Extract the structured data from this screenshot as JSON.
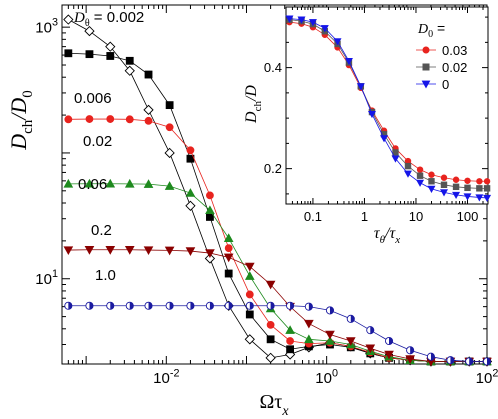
{
  "chart_data": [
    {
      "id": "main",
      "type": "line",
      "x_scale": "log",
      "y_scale": "log",
      "xlim": [
        0.0005,
        100
      ],
      "ylim": [
        2.1,
        1500
      ],
      "x_ticks": [
        {
          "value": 0.01,
          "label": "10",
          "exp": "-2"
        },
        {
          "value": 1,
          "label": "10",
          "exp": "0"
        },
        {
          "value": 100,
          "label": "10",
          "exp": "2"
        }
      ],
      "y_ticks": [
        {
          "value": 10,
          "label": "10",
          "exp": "1"
        },
        {
          "value": 1000,
          "label": "10",
          "exp": "3"
        }
      ],
      "xlabel": {
        "main": "Ωτ",
        "sub": "x"
      },
      "ylabel": {
        "main": "D",
        "sub": "ch",
        "tail": "/D",
        "tail_sub": "0"
      },
      "series": [
        {
          "label": "D",
          "label_sub": "θ",
          "label_tail": " = 0.002",
          "color": "#000000",
          "marker": "diamond-open",
          "x": [
            0.0006,
            0.0011,
            0.002,
            0.0035,
            0.006,
            0.011,
            0.02,
            0.035,
            0.06,
            0.11,
            0.2,
            0.35,
            0.6,
            1.1,
            2,
            3.5,
            6,
            11,
            20,
            35,
            60,
            100
          ],
          "y": [
            1150,
            930,
            700,
            450,
            220,
            100,
            38,
            14.5,
            6.1,
            3.3,
            2.35,
            2.5,
            2.85,
            3.1,
            2.9,
            2.55,
            2.35,
            2.25,
            2.2,
            2.2,
            2.2,
            2.2
          ]
        },
        {
          "label": "0.006",
          "color": "#000000",
          "marker": "square",
          "x": [
            0.0006,
            0.0011,
            0.002,
            0.0035,
            0.006,
            0.011,
            0.02,
            0.035,
            0.06,
            0.11,
            0.2,
            0.35,
            0.6,
            1.1,
            2,
            3.5,
            6,
            11,
            20,
            35,
            60,
            100
          ],
          "y": [
            620,
            610,
            590,
            540,
            420,
            240,
            90,
            31,
            11,
            5.2,
            3.3,
            2.75,
            2.9,
            3.0,
            2.85,
            2.55,
            2.35,
            2.25,
            2.2,
            2.2,
            2.2,
            2.2
          ]
        },
        {
          "label": "0.02",
          "color": "#e8231e",
          "marker": "circle",
          "x": [
            0.0006,
            0.0011,
            0.002,
            0.0035,
            0.006,
            0.011,
            0.02,
            0.035,
            0.06,
            0.11,
            0.2,
            0.35,
            0.6,
            1.1,
            2,
            3.5,
            6,
            11,
            20,
            35,
            60,
            100
          ],
          "y": [
            185,
            186,
            186,
            185,
            180,
            160,
            105,
            46,
            17.5,
            7.5,
            4.3,
            3.2,
            3.05,
            3.1,
            2.9,
            2.6,
            2.35,
            2.25,
            2.2,
            2.2,
            2.2,
            2.2
          ]
        },
        {
          "label": "0.06",
          "color": "#1e8a1e",
          "marker": "triangle-up",
          "x": [
            0.0006,
            0.0011,
            0.002,
            0.0035,
            0.006,
            0.011,
            0.02,
            0.035,
            0.06,
            0.11,
            0.2,
            0.35,
            0.6,
            1.1,
            2,
            3.5,
            6,
            11,
            20,
            35,
            60,
            100
          ],
          "y": [
            56.8,
            56.9,
            56.9,
            56.8,
            56.5,
            54.5,
            48,
            35,
            21,
            10.5,
            5.8,
            3.9,
            3.3,
            3.2,
            3.0,
            2.65,
            2.4,
            2.25,
            2.2,
            2.2,
            2.2,
            2.2
          ]
        },
        {
          "label": "0.2",
          "color": "#8b0000",
          "marker": "triangle-down",
          "x": [
            0.0006,
            0.0011,
            0.002,
            0.0035,
            0.006,
            0.011,
            0.02,
            0.035,
            0.06,
            0.11,
            0.2,
            0.35,
            0.6,
            1.1,
            2,
            3.5,
            6,
            11,
            20,
            35,
            60,
            100
          ],
          "y": [
            16.9,
            17,
            17,
            17,
            16.9,
            16.8,
            16.6,
            16,
            14.8,
            12.5,
            9,
            6,
            4.4,
            3.6,
            3.2,
            2.8,
            2.5,
            2.3,
            2.2,
            2.2,
            2.2,
            2.2
          ]
        },
        {
          "label": "1.0",
          "color": "#1a1aa0",
          "marker": "circle-half",
          "x": [
            0.0006,
            0.0011,
            0.002,
            0.0035,
            0.006,
            0.011,
            0.02,
            0.035,
            0.06,
            0.11,
            0.2,
            0.35,
            0.6,
            1.1,
            2,
            3.5,
            6,
            11,
            20,
            35,
            60,
            100
          ],
          "y": [
            6.1,
            6.1,
            6.1,
            6.1,
            6.1,
            6.1,
            6.1,
            6.1,
            6.1,
            6.1,
            6.1,
            6.1,
            6.0,
            5.6,
            4.8,
            3.9,
            3.2,
            2.7,
            2.4,
            2.25,
            2.2,
            2.2
          ]
        }
      ]
    },
    {
      "id": "inset",
      "type": "line",
      "x_scale": "log",
      "y_scale": "linear",
      "xlim": [
        0.03,
        250
      ],
      "ylim": [
        0.13,
        0.52
      ],
      "x_ticks": [
        {
          "value": 0.1,
          "label": "0.1"
        },
        {
          "value": 1,
          "label": "1"
        },
        {
          "value": 10,
          "label": "10"
        },
        {
          "value": 100,
          "label": "100"
        }
      ],
      "y_ticks": [
        {
          "value": 0.2,
          "label": "0.2"
        },
        {
          "value": 0.4,
          "label": "0.4"
        }
      ],
      "xlabel": {
        "main": "τ",
        "sub": "θ",
        "tail": "/τ",
        "tail_sub": "x"
      },
      "ylabel": {
        "main": "D",
        "sub": "ch",
        "tail": "/D"
      },
      "legend": {
        "title": "D",
        "title_sub": "0",
        "title_tail": " =",
        "position": "right"
      },
      "series": [
        {
          "name": "0.03",
          "color": "#e8231e",
          "marker": "circle",
          "x": [
            0.035,
            0.06,
            0.1,
            0.17,
            0.3,
            0.5,
            0.85,
            1.4,
            2.4,
            4,
            7,
            12,
            20,
            35,
            60,
            100,
            170,
            240
          ],
          "y": [
            0.49,
            0.487,
            0.48,
            0.465,
            0.44,
            0.405,
            0.36,
            0.315,
            0.275,
            0.24,
            0.215,
            0.198,
            0.188,
            0.182,
            0.178,
            0.176,
            0.175,
            0.175
          ]
        },
        {
          "name": "0.02",
          "color": "#555555",
          "marker": "square",
          "x": [
            0.035,
            0.06,
            0.1,
            0.17,
            0.3,
            0.5,
            0.85,
            1.4,
            2.4,
            4,
            7,
            12,
            20,
            35,
            60,
            100,
            170,
            240
          ],
          "y": [
            0.495,
            0.492,
            0.486,
            0.472,
            0.447,
            0.41,
            0.363,
            0.312,
            0.268,
            0.232,
            0.205,
            0.186,
            0.175,
            0.168,
            0.164,
            0.162,
            0.161,
            0.161
          ]
        },
        {
          "name": "0",
          "color": "#1515e8",
          "marker": "triangle-down",
          "x": [
            0.035,
            0.06,
            0.1,
            0.17,
            0.3,
            0.5,
            0.85,
            1.4,
            2.4,
            4,
            7,
            12,
            20,
            35,
            60,
            100,
            170,
            240
          ],
          "y": [
            0.497,
            0.495,
            0.49,
            0.478,
            0.452,
            0.413,
            0.363,
            0.308,
            0.26,
            0.22,
            0.19,
            0.172,
            0.16,
            0.153,
            0.148,
            0.145,
            0.143,
            0.142
          ]
        }
      ]
    }
  ]
}
